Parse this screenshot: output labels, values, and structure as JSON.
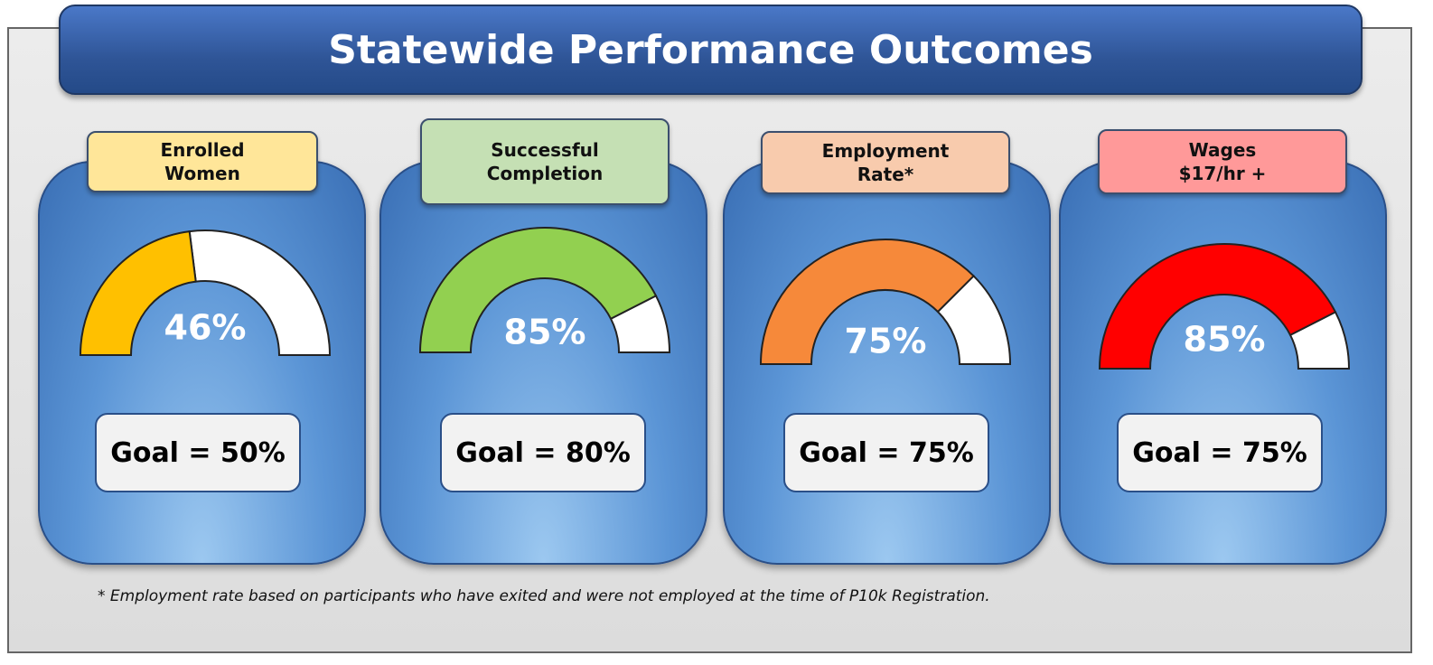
{
  "title": "Statewide Performance Outcomes",
  "footnote": "* Employment rate based on participants who have exited and were not employed at the time of P10k Registration.",
  "chart_data": [
    {
      "type": "gauge",
      "title": "Enrolled Women",
      "values": [
        46
      ],
      "value_labels": [
        "46%"
      ],
      "ylim": [
        0,
        100
      ],
      "color": "#ffc000",
      "label_color": "#ffe699",
      "goal_label": "Goal = 50%"
    },
    {
      "type": "gauge",
      "title": "Successful Completion",
      "values": [
        85
      ],
      "value_labels": [
        "85%"
      ],
      "ylim": [
        0,
        100
      ],
      "color": "#92d050",
      "label_color": "#c5e0b4",
      "goal_label": "Goal = 80%"
    },
    {
      "type": "gauge",
      "title": "Employment Rate*",
      "values": [
        75
      ],
      "value_labels": [
        "75%"
      ],
      "ylim": [
        0,
        100
      ],
      "color": "#f6893a",
      "label_color": "#f8cbad",
      "goal_label": "Goal = 75%"
    },
    {
      "type": "gauge",
      "title": "Wages $17/hr +",
      "values": [
        85
      ],
      "value_labels": [
        "85%"
      ],
      "ylim": [
        0,
        100
      ],
      "color": "#ff0000",
      "label_color": "#ff9999",
      "goal_label": "Goal = 75%"
    }
  ]
}
